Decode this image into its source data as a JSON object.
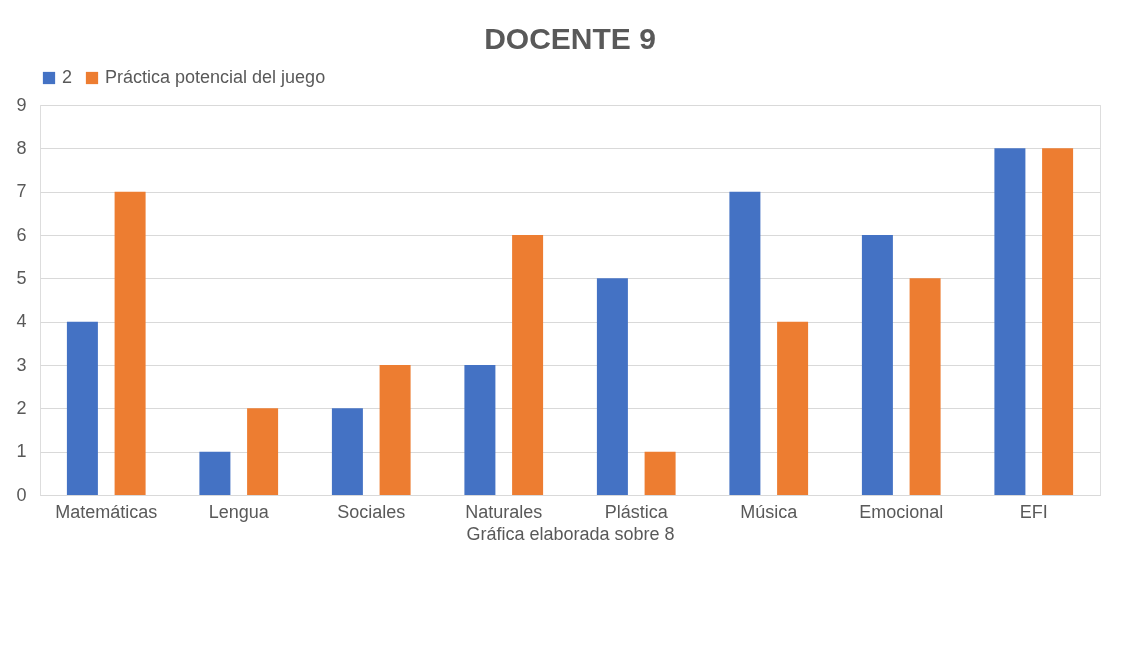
{
  "chart_data": {
    "type": "bar",
    "title": "DOCENTE 9",
    "xlabel": "Gráfica elaborada sobre 8",
    "categories": [
      "Matemáticas",
      "Lengua",
      "Sociales",
      "Naturales",
      "Plástica",
      "Música",
      "Emocional",
      "EFI"
    ],
    "series": [
      {
        "name": "2",
        "color": "#4472c4",
        "values": [
          4,
          1,
          2,
          3,
          5,
          7,
          6,
          8
        ]
      },
      {
        "name": "Práctica potencial del juego",
        "color": "#ed7d31",
        "values": [
          7,
          2,
          3,
          6,
          1,
          4,
          5,
          8
        ]
      }
    ],
    "ylim": [
      0,
      9
    ],
    "yticks": [
      0,
      1,
      2,
      3,
      4,
      5,
      6,
      7,
      8,
      9
    ],
    "grid": "y",
    "legend": "top"
  }
}
